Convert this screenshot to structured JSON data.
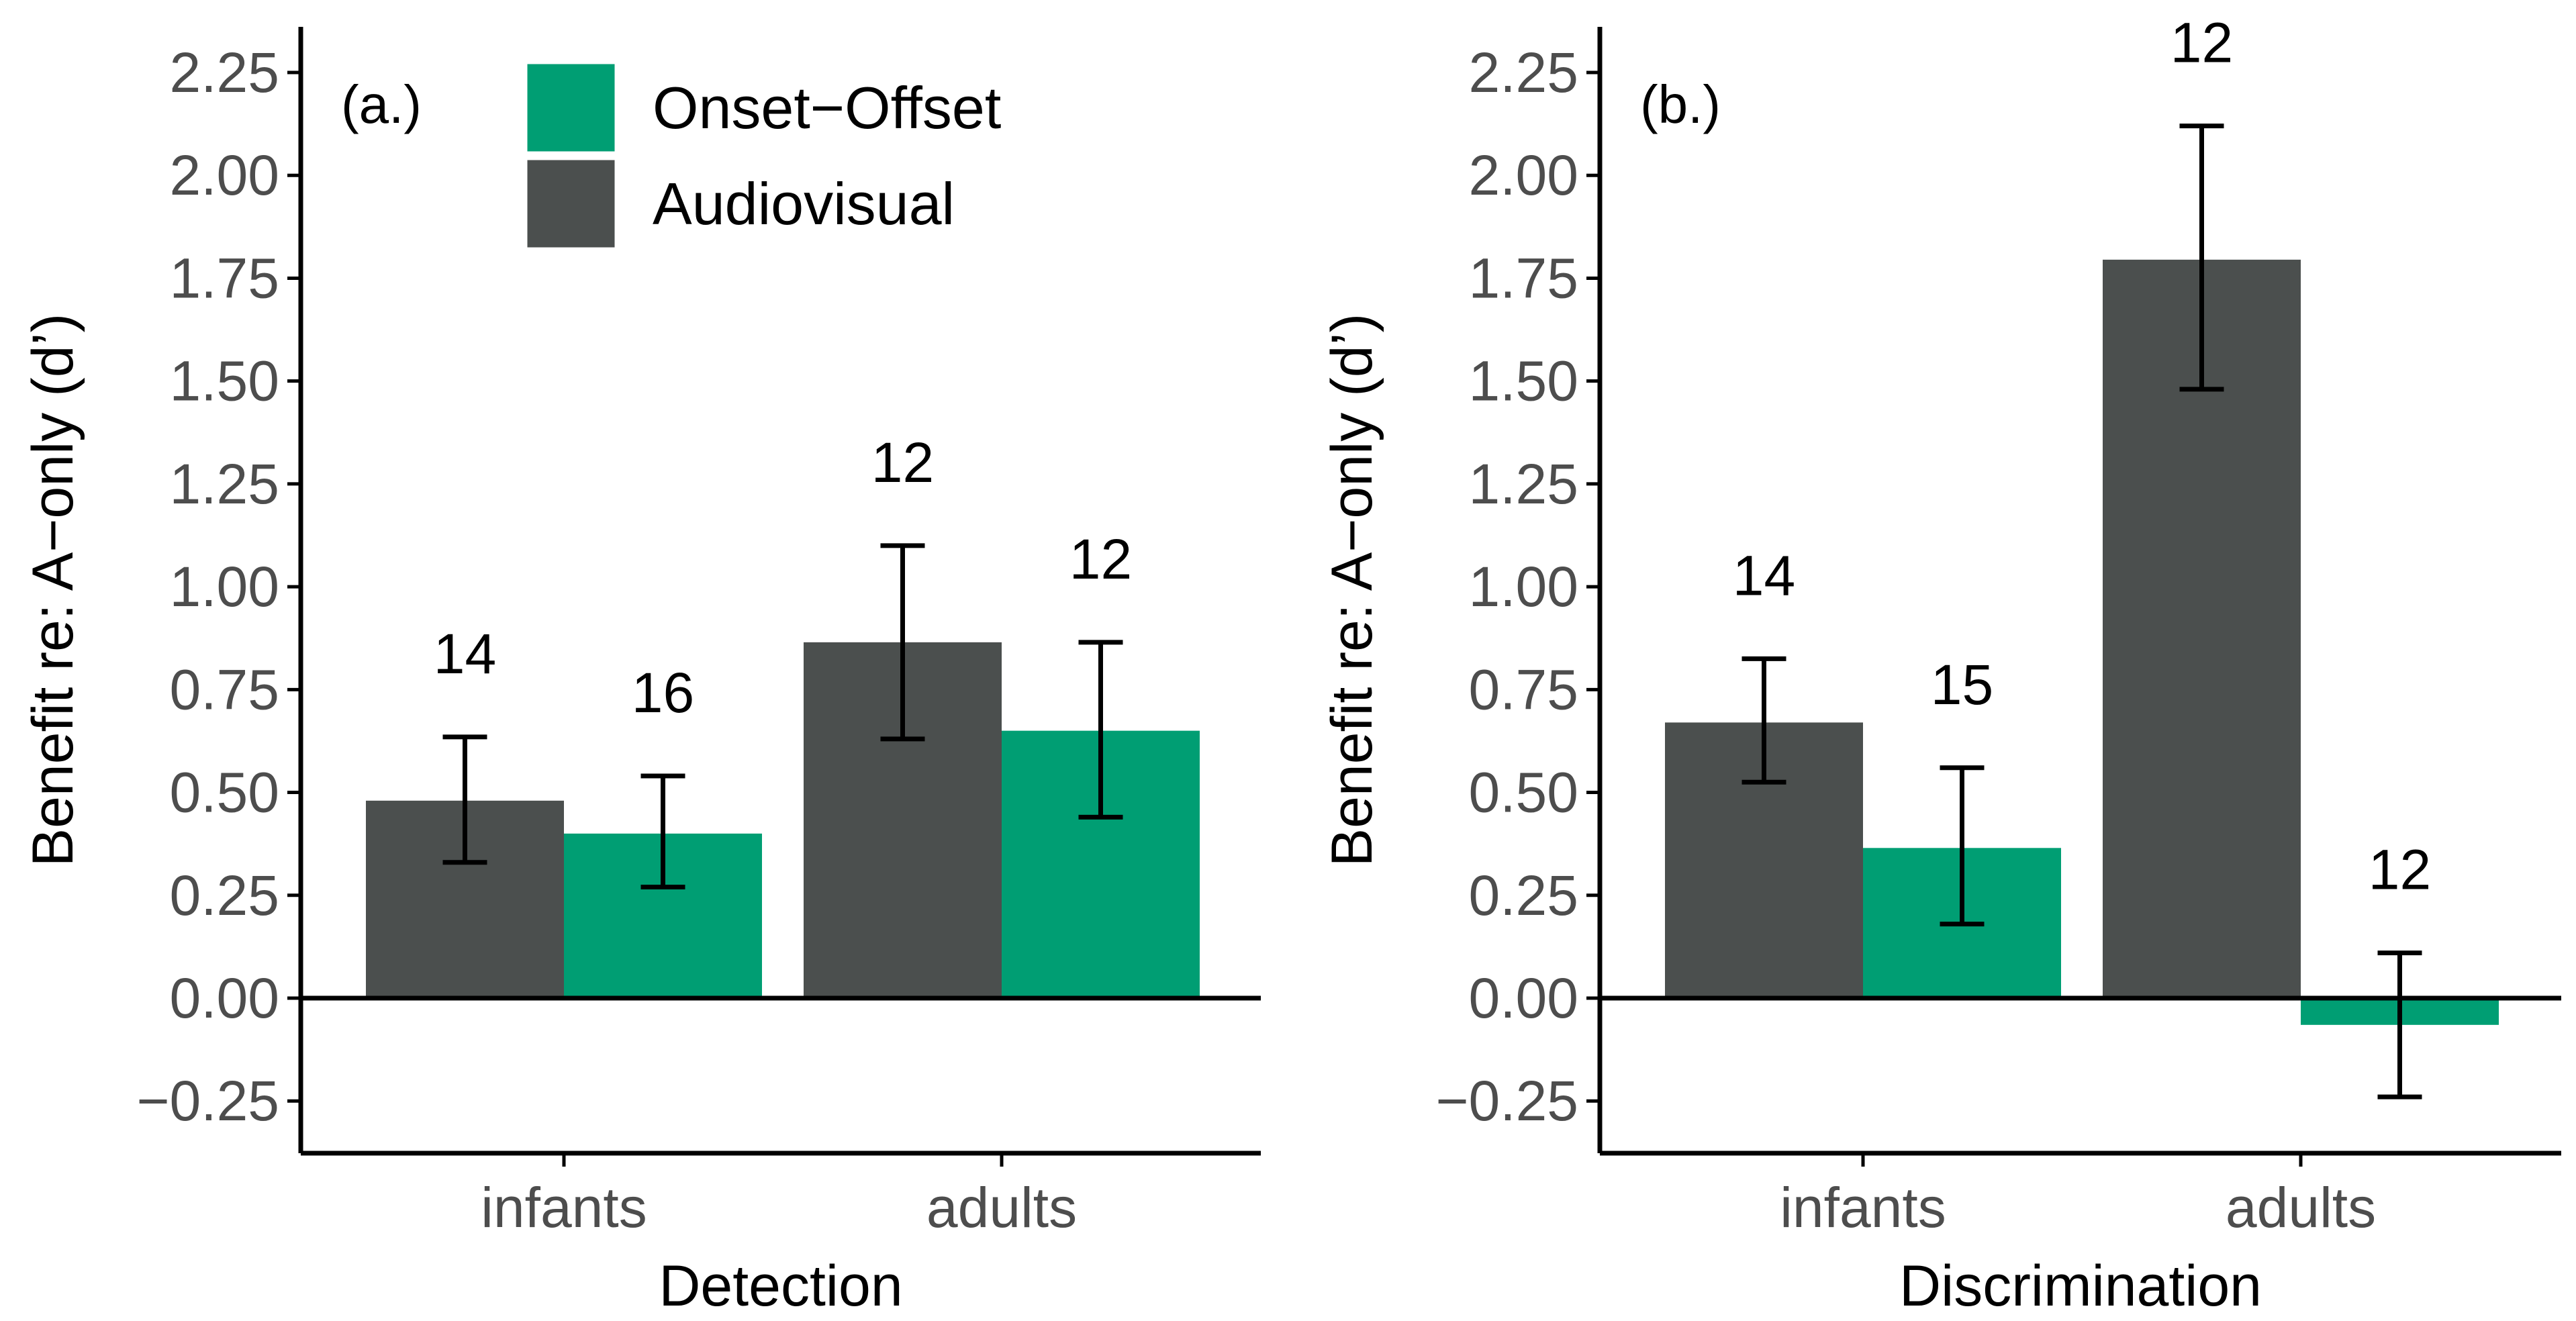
{
  "colors": {
    "Audiovisual": "#4b4f4e",
    "Onset-Offset": "#009e73",
    "axis": "#000000",
    "tick_text": "#4d4d4d"
  },
  "legend": {
    "placement": "top-left of panel (a.)",
    "entries": [
      "Onset−Offset",
      "Audiovisual"
    ]
  },
  "chart_data": [
    {
      "type": "bar",
      "panel_label": "(a.)",
      "title": "",
      "xlabel": "Detection",
      "ylabel": "Benefit re: A−only (d’)",
      "ylim": [
        -0.37,
        2.37
      ],
      "yticks": [
        -0.25,
        0,
        0.25,
        0.5,
        0.75,
        1,
        1.25,
        1.5,
        1.75,
        2,
        2.25
      ],
      "ytick_labels": [
        "−0.25",
        "0.00",
        "0.25",
        "0.50",
        "0.75",
        "1.00",
        "1.25",
        "1.50",
        "1.75",
        "2.00",
        "2.25"
      ],
      "categories": [
        "infants",
        "adults"
      ],
      "series": [
        {
          "name": "Audiovisual",
          "values": [
            0.48,
            0.865
          ],
          "error_low": [
            0.33,
            0.63
          ],
          "error_high": [
            0.635,
            1.1
          ],
          "n": [
            "14",
            "12"
          ]
        },
        {
          "name": "Onset−Offset",
          "values": [
            0.4,
            0.65
          ],
          "error_low": [
            0.27,
            0.44
          ],
          "error_high": [
            0.54,
            0.865
          ],
          "n": [
            "16",
            "12"
          ]
        }
      ],
      "grid": false,
      "zero_line": true
    },
    {
      "type": "bar",
      "panel_label": "(b.)",
      "title": "",
      "xlabel": "Discrimination",
      "ylabel": "Benefit re: A−only (d’)",
      "ylim": [
        -0.37,
        2.37
      ],
      "yticks": [
        -0.25,
        0,
        0.25,
        0.5,
        0.75,
        1,
        1.25,
        1.5,
        1.75,
        2,
        2.25
      ],
      "ytick_labels": [
        "−0.25",
        "0.00",
        "0.25",
        "0.50",
        "0.75",
        "1.00",
        "1.25",
        "1.50",
        "1.75",
        "2.00",
        "2.25"
      ],
      "categories": [
        "infants",
        "adults"
      ],
      "series": [
        {
          "name": "Audiovisual",
          "values": [
            0.67,
            1.795
          ],
          "error_low": [
            0.525,
            1.48
          ],
          "error_high": [
            0.825,
            2.12
          ],
          "n": [
            "14",
            "12"
          ]
        },
        {
          "name": "Onset−Offset",
          "values": [
            0.365,
            -0.065
          ],
          "error_low": [
            0.18,
            -0.24
          ],
          "error_high": [
            0.56,
            0.11
          ],
          "n": [
            "15",
            "12"
          ]
        }
      ],
      "grid": false,
      "zero_line": true
    }
  ]
}
